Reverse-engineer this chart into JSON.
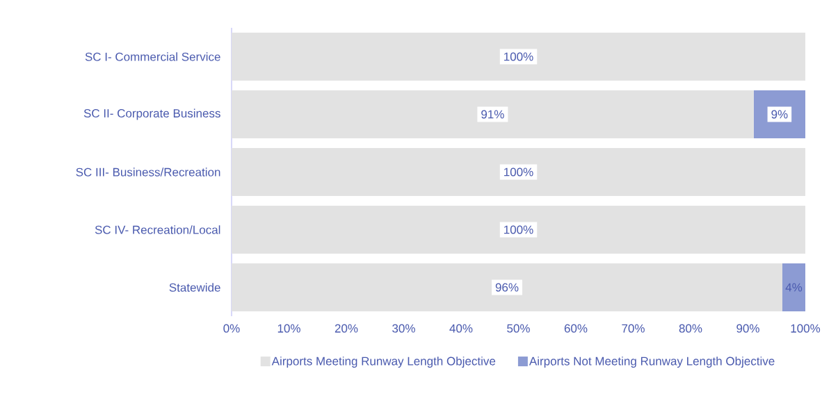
{
  "chart_data": {
    "type": "bar",
    "orientation": "horizontal",
    "stacked": true,
    "categories": [
      "SC I- Commercial Service",
      "SC II- Corporate Business",
      "SC III- Business/Recreation",
      "SC IV- Recreation/Local",
      "Statewide"
    ],
    "series": [
      {
        "name": "Airports Meeting Runway Length Objective",
        "color": "#e2e2e2",
        "values": [
          100,
          91,
          100,
          100,
          96
        ],
        "value_labels": [
          "100%",
          "91%",
          "100%",
          "100%",
          "96%"
        ]
      },
      {
        "name": "Airports Not Meeting Runway Length Objective",
        "color": "#8c9bd3",
        "values": [
          0,
          9,
          0,
          0,
          4
        ],
        "value_labels": [
          null,
          "9%",
          null,
          null,
          "4%"
        ]
      }
    ],
    "xlim": [
      0,
      100
    ],
    "xticks": [
      {
        "value": 0,
        "label": "0%"
      },
      {
        "value": 10,
        "label": "10%"
      },
      {
        "value": 20,
        "label": "20%"
      },
      {
        "value": 30,
        "label": "30%"
      },
      {
        "value": 40,
        "label": "40%"
      },
      {
        "value": 50,
        "label": "50%"
      },
      {
        "value": 60,
        "label": "60%"
      },
      {
        "value": 70,
        "label": "70%"
      },
      {
        "value": 80,
        "label": "80%"
      },
      {
        "value": 90,
        "label": "90%"
      },
      {
        "value": 100,
        "label": "100%"
      }
    ],
    "grid": false,
    "legend": "bottom"
  }
}
